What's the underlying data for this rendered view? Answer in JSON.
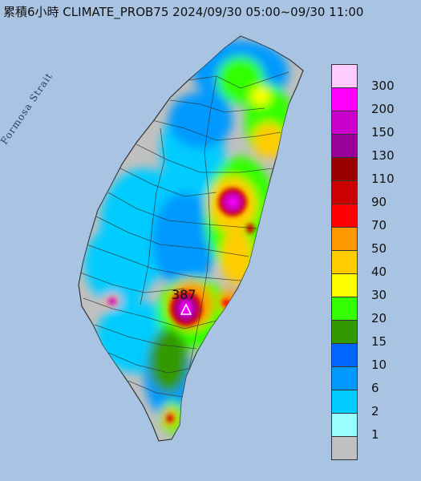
{
  "title": "累積6小時 CLIMATE_PROB75 2024/09/30 05:00~09/30 11:00",
  "sea_label": "Formosa Strait",
  "max_label": "387",
  "colors": {
    "sea": "#a9c4e3",
    "land_no_rain": "#c0c0c0",
    "border": "#333333"
  },
  "legend": [
    {
      "label": "300",
      "color": "#ffccff"
    },
    {
      "label": "200",
      "color": "#ff00ff"
    },
    {
      "label": "150",
      "color": "#cc00cc"
    },
    {
      "label": "130",
      "color": "#990099"
    },
    {
      "label": "110",
      "color": "#990000"
    },
    {
      "label": "90",
      "color": "#cc0000"
    },
    {
      "label": "70",
      "color": "#ff0000"
    },
    {
      "label": "50",
      "color": "#ff9900"
    },
    {
      "label": "40",
      "color": "#ffcc00"
    },
    {
      "label": "30",
      "color": "#ffff00"
    },
    {
      "label": "20",
      "color": "#33ff00"
    },
    {
      "label": "15",
      "color": "#339900"
    },
    {
      "label": "10",
      "color": "#0066ff"
    },
    {
      "label": "6",
      "color": "#0099ff"
    },
    {
      "label": "2",
      "color": "#00ccff"
    },
    {
      "label": "1",
      "color": "#99ffff"
    },
    {
      "label": "",
      "color": "#c0c0c0"
    }
  ]
}
